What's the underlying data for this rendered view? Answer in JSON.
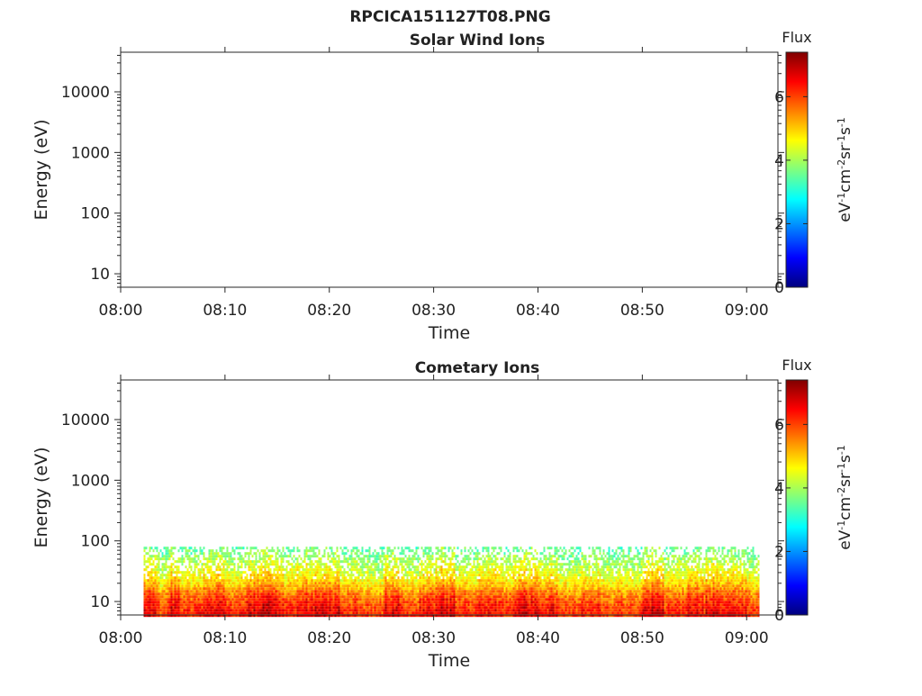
{
  "figure": {
    "title": "RPCICA151127T08.PNG"
  },
  "colormap_stops": [
    "#00007f",
    "#0000ff",
    "#007fff",
    "#00ffff",
    "#7fff7f",
    "#ffff00",
    "#ff7f00",
    "#ff0000",
    "#7f0000"
  ],
  "chart_data": [
    {
      "type": "heatmap",
      "title": "Solar Wind Ions",
      "xlabel": "Time",
      "ylabel": "Energy (eV)",
      "x_ticks": [
        "08:00",
        "08:10",
        "08:20",
        "08:30",
        "08:40",
        "08:50",
        "09:00"
      ],
      "y_scale": "log",
      "y_ticks": [
        10,
        100,
        1000,
        10000
      ],
      "y_tick_labels": [
        "10",
        "100",
        "1000",
        "10000"
      ],
      "x_range_minutes": [
        0,
        63
      ],
      "y_range_eV": [
        6,
        45000
      ],
      "colorbar": {
        "label": "Flux",
        "unit_label": "eV-1cm-2sr-1s-1",
        "ticks": [
          "0",
          "2",
          "4",
          "6"
        ],
        "range": [
          0,
          7.4
        ]
      },
      "data_summary": "no data (empty panel)",
      "grid": false
    },
    {
      "type": "heatmap",
      "title": "Cometary Ions",
      "xlabel": "Time",
      "ylabel": "Energy (eV)",
      "x_ticks": [
        "08:00",
        "08:10",
        "08:20",
        "08:30",
        "08:40",
        "08:50",
        "09:00"
      ],
      "y_scale": "log",
      "y_ticks": [
        10,
        100,
        1000,
        10000
      ],
      "y_tick_labels": [
        "10",
        "100",
        "1000",
        "10000"
      ],
      "x_range_minutes": [
        0,
        63
      ],
      "y_range_eV": [
        6,
        45000
      ],
      "colorbar": {
        "label": "Flux",
        "unit_label": "eV-1cm-2sr-1s-1",
        "ticks": [
          "0",
          "2",
          "4",
          "6"
        ],
        "range": [
          0,
          7.4
        ]
      },
      "data_extent": {
        "time_start_min": 2.2,
        "time_end_min": 61.2,
        "energy_min_eV": 6,
        "energy_max_eV": 80
      },
      "flux_profile": [
        {
          "energy_eV": 80,
          "flux": 3.8
        },
        {
          "energy_eV": 50,
          "flux": 4.4
        },
        {
          "energy_eV": 30,
          "flux": 4.9
        },
        {
          "energy_eV": 20,
          "flux": 5.4
        },
        {
          "energy_eV": 15,
          "flux": 6.0
        },
        {
          "energy_eV": 10,
          "flux": 6.6
        },
        {
          "energy_eV": 7,
          "flux": 6.9
        }
      ],
      "intensity_by_time": [
        {
          "t_min": 3,
          "level": 0.9
        },
        {
          "t_min": 4,
          "level": 0.6
        },
        {
          "t_min": 5,
          "level": 0.9
        },
        {
          "t_min": 6,
          "level": 0.7
        },
        {
          "t_min": 8,
          "level": 0.8
        },
        {
          "t_min": 9,
          "level": 0.9
        },
        {
          "t_min": 11,
          "level": 0.7
        },
        {
          "t_min": 13,
          "level": 0.9
        },
        {
          "t_min": 14,
          "level": 1.0
        },
        {
          "t_min": 16,
          "level": 0.8
        },
        {
          "t_min": 18,
          "level": 0.9
        },
        {
          "t_min": 20,
          "level": 0.9
        },
        {
          "t_min": 22,
          "level": 0.7
        },
        {
          "t_min": 24,
          "level": 0.6
        },
        {
          "t_min": 26,
          "level": 0.9
        },
        {
          "t_min": 28,
          "level": 0.6
        },
        {
          "t_min": 29,
          "level": 0.8
        },
        {
          "t_min": 31,
          "level": 1.0
        },
        {
          "t_min": 33,
          "level": 0.7
        },
        {
          "t_min": 35,
          "level": 0.8
        },
        {
          "t_min": 37,
          "level": 0.7
        },
        {
          "t_min": 39,
          "level": 0.9
        },
        {
          "t_min": 41,
          "level": 0.8
        },
        {
          "t_min": 43,
          "level": 0.6
        },
        {
          "t_min": 45,
          "level": 0.7
        },
        {
          "t_min": 47,
          "level": 0.6
        },
        {
          "t_min": 49,
          "level": 0.6
        },
        {
          "t_min": 51,
          "level": 1.0
        },
        {
          "t_min": 53,
          "level": 0.7
        },
        {
          "t_min": 55,
          "level": 0.8
        },
        {
          "t_min": 57,
          "level": 0.9
        },
        {
          "t_min": 59,
          "level": 0.8
        },
        {
          "t_min": 61,
          "level": 0.6
        }
      ],
      "grid": false
    }
  ]
}
